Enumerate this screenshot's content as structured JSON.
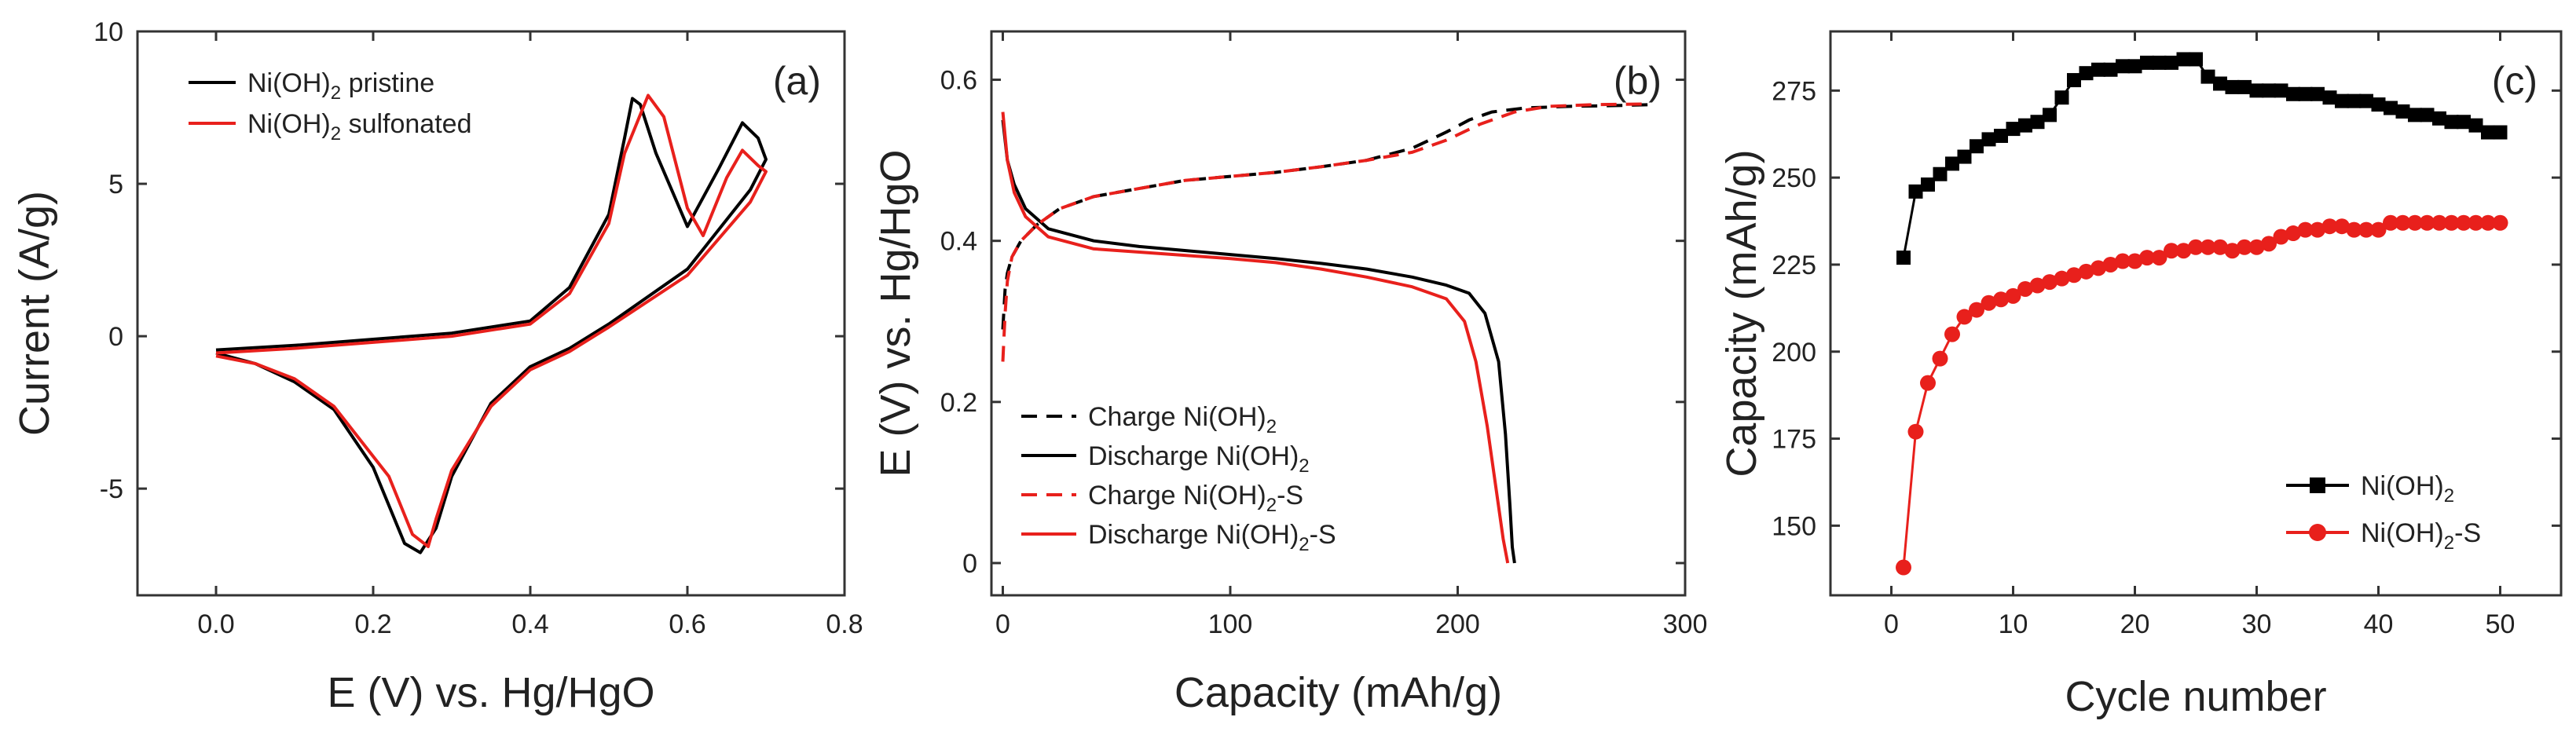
{
  "chart_data": [
    {
      "type": "line",
      "panel_label": "(a)",
      "xlabel": "E (V) vs. Hg/HgO",
      "ylabel": "Current (A/g)",
      "xlim": [
        -0.1,
        0.8
      ],
      "ylim": [
        -8.5,
        10
      ],
      "xticks": [
        0.0,
        0.2,
        0.4,
        0.6,
        0.8
      ],
      "xtick_labels": [
        "0.0",
        "0.2",
        "0.4",
        "0.6",
        "0.8"
      ],
      "yticks": [
        -5,
        0,
        5,
        10
      ],
      "ytick_labels": [
        "-5",
        "0",
        "5",
        "10"
      ],
      "legend_placement": "top-left",
      "series": [
        {
          "name": "Ni(OH)2 pristine",
          "legend_base": "Ni(OH)",
          "legend_sub": "2",
          "legend_suffix": " pristine",
          "color": "#000000",
          "dash": "solid",
          "x": [
            0.0,
            0.1,
            0.2,
            0.3,
            0.4,
            0.45,
            0.5,
            0.52,
            0.53,
            0.54,
            0.56,
            0.6,
            0.64,
            0.67,
            0.69,
            0.7,
            0.68,
            0.6,
            0.5,
            0.45,
            0.4,
            0.35,
            0.3,
            0.28,
            0.26,
            0.24,
            0.2,
            0.15,
            0.1,
            0.05,
            0.0
          ],
          "y": [
            -0.45,
            -0.3,
            -0.1,
            0.1,
            0.5,
            1.6,
            4.0,
            6.5,
            7.8,
            7.6,
            6.0,
            3.6,
            5.5,
            7.0,
            6.5,
            5.8,
            4.8,
            2.2,
            0.4,
            -0.4,
            -1.0,
            -2.2,
            -4.6,
            -6.3,
            -7.1,
            -6.8,
            -4.3,
            -2.4,
            -1.5,
            -0.9,
            -0.55
          ]
        },
        {
          "name": "Ni(OH)2 sulfonated",
          "legend_base": "Ni(OH)",
          "legend_sub": "2",
          "legend_suffix": " sulfonated",
          "color": "#e8201c",
          "dash": "solid",
          "x": [
            0.0,
            0.1,
            0.2,
            0.3,
            0.4,
            0.45,
            0.5,
            0.52,
            0.55,
            0.57,
            0.6,
            0.62,
            0.65,
            0.67,
            0.69,
            0.7,
            0.68,
            0.6,
            0.5,
            0.45,
            0.4,
            0.35,
            0.3,
            0.28,
            0.27,
            0.25,
            0.22,
            0.15,
            0.1,
            0.05,
            0.0
          ],
          "y": [
            -0.55,
            -0.4,
            -0.2,
            0.0,
            0.4,
            1.4,
            3.7,
            6.0,
            7.9,
            7.2,
            4.2,
            3.3,
            5.2,
            6.1,
            5.6,
            5.4,
            4.4,
            2.0,
            0.3,
            -0.5,
            -1.1,
            -2.3,
            -4.4,
            -6.0,
            -6.9,
            -6.5,
            -4.6,
            -2.3,
            -1.4,
            -0.9,
            -0.65
          ]
        }
      ]
    },
    {
      "type": "line",
      "panel_label": "(b)",
      "xlabel": "Capacity (mAh/g)",
      "ylabel": "E (V) vs. Hg/HgO",
      "xlim": [
        -5,
        300
      ],
      "ylim": [
        -0.04,
        0.66
      ],
      "xticks": [
        0,
        100,
        200,
        300
      ],
      "xtick_labels": [
        "0",
        "100",
        "200",
        "300"
      ],
      "yticks": [
        0.0,
        0.2,
        0.4,
        0.6
      ],
      "ytick_labels": [
        "0",
        "0.2",
        "0.4",
        "0.6"
      ],
      "legend_placement": "bottom-left",
      "series": [
        {
          "name": "Charge Ni(OH)2",
          "legend_base": "Charge Ni(OH)",
          "legend_sub": "2",
          "legend_suffix": "",
          "color": "#000000",
          "dash": "dashed",
          "x": [
            0,
            1,
            2,
            4,
            8,
            15,
            25,
            40,
            60,
            80,
            100,
            120,
            140,
            160,
            180,
            195,
            205,
            215,
            230,
            250,
            270,
            285
          ],
          "y": [
            0.29,
            0.34,
            0.36,
            0.38,
            0.4,
            0.42,
            0.44,
            0.455,
            0.465,
            0.475,
            0.48,
            0.485,
            0.492,
            0.5,
            0.515,
            0.535,
            0.55,
            0.56,
            0.565,
            0.567,
            0.568,
            0.569
          ]
        },
        {
          "name": "Discharge Ni(OH)2",
          "legend_base": "Discharge Ni(OH)",
          "legend_sub": "2",
          "legend_suffix": "",
          "color": "#000000",
          "dash": "solid",
          "x": [
            0,
            2,
            5,
            10,
            20,
            40,
            60,
            80,
            100,
            120,
            140,
            160,
            180,
            195,
            205,
            212,
            218,
            221,
            223,
            224,
            225
          ],
          "y": [
            0.55,
            0.5,
            0.47,
            0.44,
            0.415,
            0.4,
            0.393,
            0.388,
            0.383,
            0.378,
            0.372,
            0.365,
            0.355,
            0.345,
            0.335,
            0.31,
            0.25,
            0.16,
            0.07,
            0.02,
            0.0
          ]
        },
        {
          "name": "Charge Ni(OH)2-S",
          "legend_base": "Charge Ni(OH)",
          "legend_sub": "2",
          "legend_suffix": "-S",
          "color": "#e8201c",
          "dash": "dashed",
          "x": [
            0,
            1,
            2,
            4,
            8,
            15,
            25,
            40,
            60,
            80,
            100,
            120,
            140,
            160,
            180,
            195,
            210,
            225,
            240,
            260,
            285
          ],
          "y": [
            0.25,
            0.31,
            0.35,
            0.38,
            0.4,
            0.42,
            0.44,
            0.455,
            0.465,
            0.475,
            0.48,
            0.485,
            0.492,
            0.5,
            0.51,
            0.525,
            0.545,
            0.56,
            0.567,
            0.569,
            0.57
          ]
        },
        {
          "name": "Discharge Ni(OH)2-S",
          "legend_base": "Discharge Ni(OH)",
          "legend_sub": "2",
          "legend_suffix": "-S",
          "color": "#e8201c",
          "dash": "solid",
          "x": [
            0,
            2,
            5,
            10,
            20,
            40,
            60,
            80,
            100,
            120,
            140,
            160,
            180,
            195,
            203,
            208,
            213,
            217,
            220,
            222
          ],
          "y": [
            0.56,
            0.5,
            0.46,
            0.43,
            0.405,
            0.39,
            0.386,
            0.382,
            0.378,
            0.373,
            0.365,
            0.355,
            0.343,
            0.328,
            0.3,
            0.25,
            0.17,
            0.09,
            0.03,
            0.0
          ]
        }
      ]
    },
    {
      "type": "scatter",
      "panel_label": "(c)",
      "xlabel": "Cycle number",
      "ylabel": "Capacity (mAh/g)",
      "xlim": [
        -5,
        55
      ],
      "ylim": [
        130,
        292
      ],
      "xticks": [
        0,
        10,
        20,
        30,
        40,
        50
      ],
      "xtick_labels": [
        "0",
        "10",
        "20",
        "30",
        "40",
        "50"
      ],
      "yticks": [
        150,
        175,
        200,
        225,
        250,
        275
      ],
      "ytick_labels": [
        "150",
        "175",
        "200",
        "225",
        "250",
        "275"
      ],
      "legend_placement": "bottom-right",
      "series": [
        {
          "name": "Ni(OH)2",
          "legend_base": "Ni(OH)",
          "legend_sub": "2",
          "legend_suffix": "",
          "color": "#000000",
          "marker": "square",
          "x": [
            1,
            2,
            3,
            4,
            5,
            6,
            7,
            8,
            9,
            10,
            11,
            12,
            13,
            14,
            15,
            16,
            17,
            18,
            19,
            20,
            21,
            22,
            23,
            24,
            25,
            26,
            27,
            28,
            29,
            30,
            31,
            32,
            33,
            34,
            35,
            36,
            37,
            38,
            39,
            40,
            41,
            42,
            43,
            44,
            45,
            46,
            47,
            48,
            49,
            50
          ],
          "y": [
            227,
            246,
            248,
            251,
            254,
            256,
            259,
            261,
            262,
            264,
            265,
            266,
            268,
            273,
            278,
            280,
            281,
            281,
            282,
            282,
            283,
            283,
            283,
            284,
            284,
            279,
            277,
            276,
            276,
            275,
            275,
            275,
            274,
            274,
            274,
            273,
            272,
            272,
            272,
            271,
            270,
            269,
            268,
            268,
            267,
            266,
            266,
            265,
            263,
            263
          ]
        },
        {
          "name": "Ni(OH)2-S",
          "legend_base": "Ni(OH)",
          "legend_sub": "2",
          "legend_suffix": "-S",
          "color": "#e8201c",
          "marker": "circle",
          "x": [
            1,
            2,
            3,
            4,
            5,
            6,
            7,
            8,
            9,
            10,
            11,
            12,
            13,
            14,
            15,
            16,
            17,
            18,
            19,
            20,
            21,
            22,
            23,
            24,
            25,
            26,
            27,
            28,
            29,
            30,
            31,
            32,
            33,
            34,
            35,
            36,
            37,
            38,
            39,
            40,
            41,
            42,
            43,
            44,
            45,
            46,
            47,
            48,
            49,
            50
          ],
          "y": [
            138,
            177,
            191,
            198,
            205,
            210,
            212,
            214,
            215,
            216,
            218,
            219,
            220,
            221,
            222,
            223,
            224,
            225,
            226,
            226,
            227,
            227,
            229,
            229,
            230,
            230,
            230,
            229,
            230,
            230,
            231,
            233,
            234,
            235,
            235,
            236,
            236,
            235,
            235,
            235,
            237,
            237,
            237,
            237,
            237,
            237,
            237,
            237,
            237,
            237
          ]
        }
      ]
    }
  ]
}
